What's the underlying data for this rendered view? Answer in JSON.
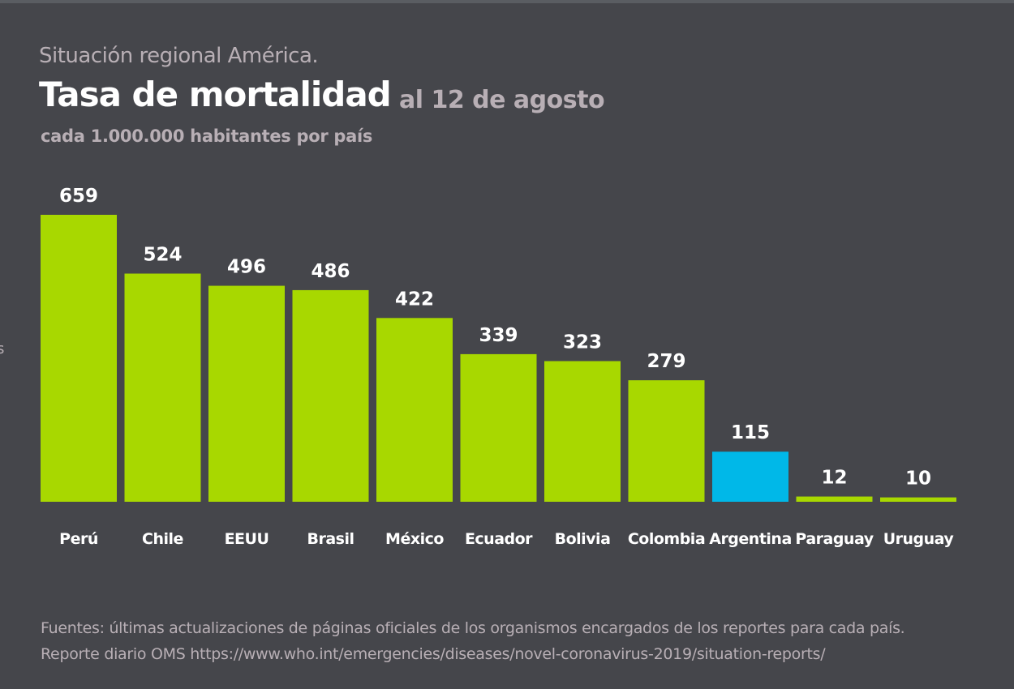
{
  "header": {
    "kicker": "Situación regional América.",
    "title": "Tasa de mortalidad",
    "date": "al 12 de agosto",
    "unit": "cada 1.000.000 habitantes por país"
  },
  "edge_fragment": "s",
  "colors": {
    "background": "#45464b",
    "bar": "#a8d800",
    "highlight": "#00b8e8",
    "label": "#ffffff"
  },
  "chart_data": {
    "type": "bar",
    "categories": [
      "Perú",
      "Chile",
      "EEUU",
      "Brasil",
      "México",
      "Ecuador",
      "Bolivia",
      "Colombia",
      "Argentina",
      "Paraguay",
      "Uruguay"
    ],
    "values": [
      659,
      524,
      496,
      486,
      422,
      339,
      323,
      279,
      115,
      12,
      10
    ],
    "highlight": "Argentina",
    "title": "Tasa de mortalidad",
    "xlabel": "",
    "ylabel": "",
    "ylim": [
      0,
      659
    ],
    "grid": false,
    "data_labels": true
  },
  "footer": {
    "sources": "Fuentes: últimas actualizaciones de páginas oficiales de los organismos encargados de los reportes para cada país.",
    "report": "Reporte diario OMS https://www.who.int/emergencies/diseases/novel-coronavirus-2019/situation-reports/"
  }
}
